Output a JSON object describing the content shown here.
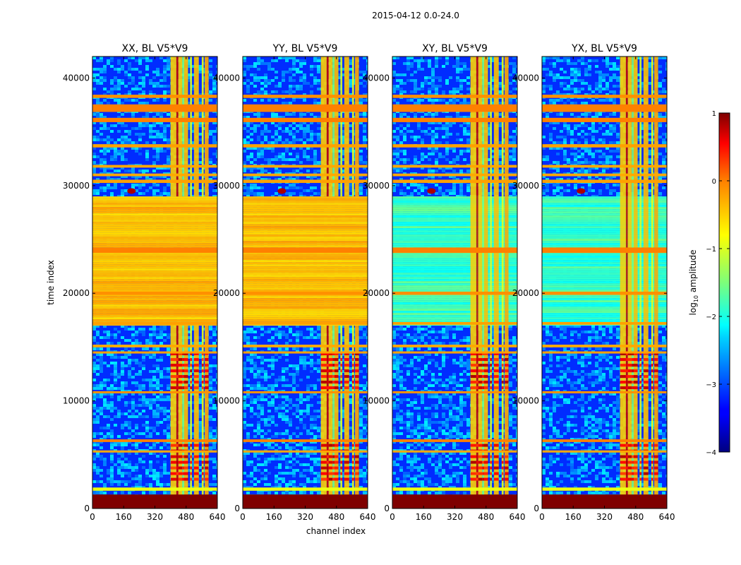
{
  "chart_data": {
    "type": "heatmap",
    "title": "2015-04-12 0.0-24.0",
    "xlabel": "channel index",
    "ylabel": "time index",
    "xlim": [
      0,
      640
    ],
    "ylim": [
      0,
      42000
    ],
    "xticks": [
      0,
      160,
      320,
      480,
      640
    ],
    "yticks": [
      0,
      10000,
      20000,
      30000,
      40000
    ],
    "panels": [
      {
        "name": "XX",
        "title": "XX, BL V5*V9",
        "cross_pol": false
      },
      {
        "name": "YY",
        "title": "YY, BL V5*V9",
        "cross_pol": false
      },
      {
        "name": "XY",
        "title": "XY, BL V5*V9",
        "cross_pol": true
      },
      {
        "name": "YX",
        "title": "YX, BL V5*V9",
        "cross_pol": true
      }
    ],
    "colorbar": {
      "label": "log",
      "label_sub": "10",
      "label_suffix": " amplitude",
      "range": [
        -4,
        1
      ],
      "ticks": [
        1,
        0,
        -1,
        -2,
        -3,
        -4
      ],
      "tick_labels": [
        "1",
        "0",
        "−1",
        "−2",
        "−3",
        "−4"
      ],
      "colormap": "jet"
    }
  }
}
